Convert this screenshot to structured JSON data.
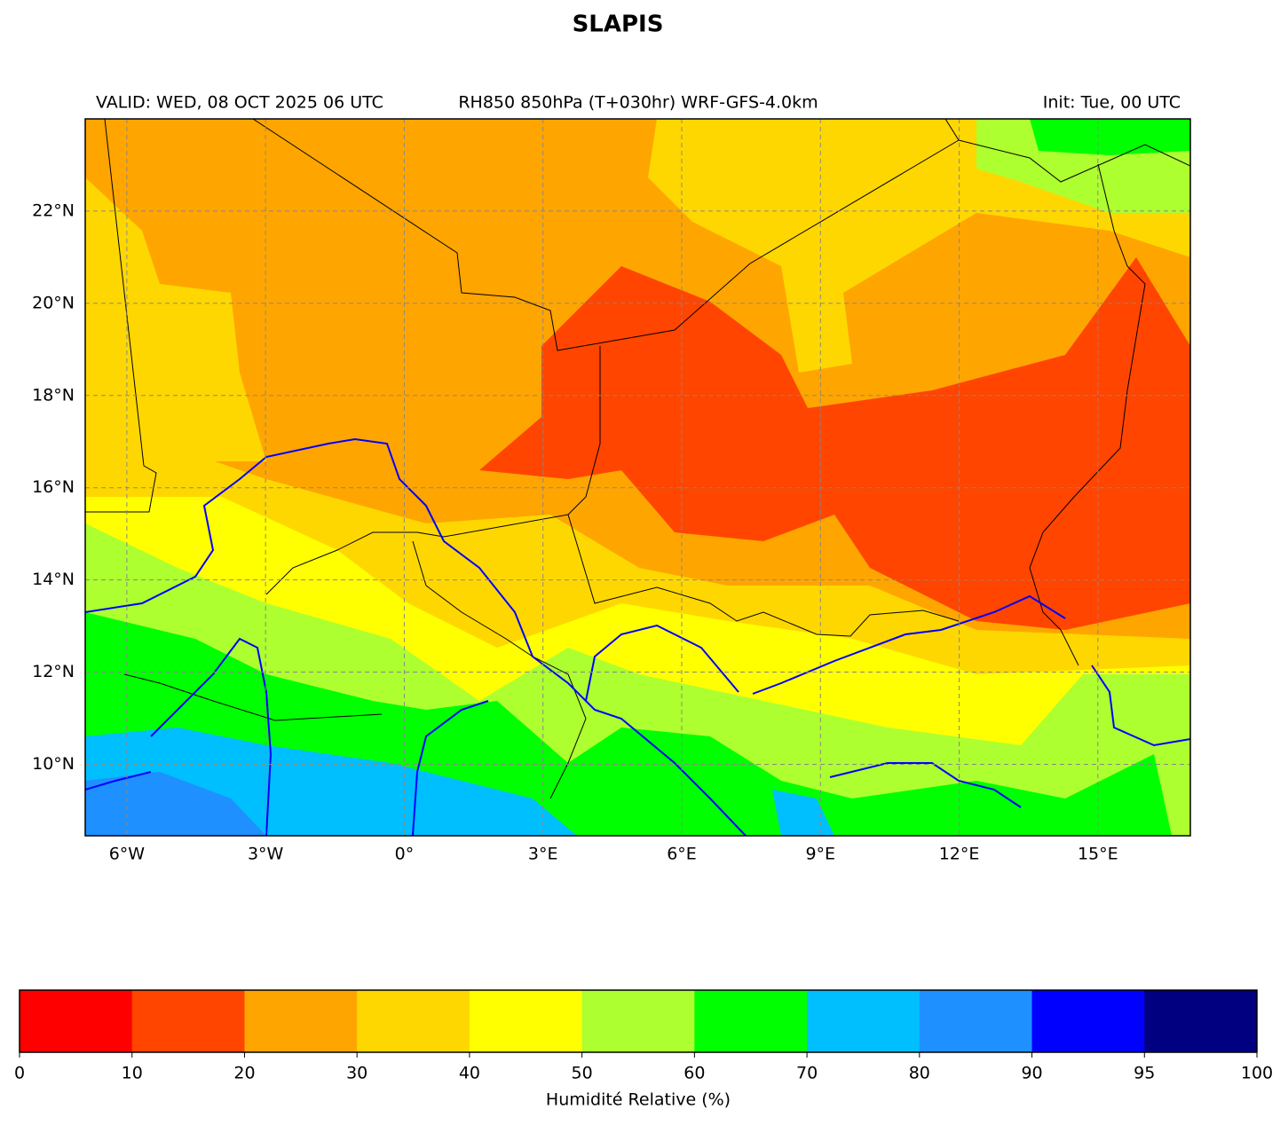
{
  "title": "SLAPIS",
  "header": {
    "left": "VALID: WED, 08 OCT 2025 06 UTC",
    "center": "RH850 850hPa (T+030hr) WRF-GFS-4.0km",
    "right": "Init: Tue, 00 UTC"
  },
  "map": {
    "xlim": [
      -6.9,
      17
    ],
    "ylim": [
      8.45,
      24
    ],
    "grid": true,
    "xticks": [
      {
        "value": -6,
        "label": "6°W"
      },
      {
        "value": -3,
        "label": "3°W"
      },
      {
        "value": 0,
        "label": "0°"
      },
      {
        "value": 3,
        "label": "3°E"
      },
      {
        "value": 6,
        "label": "6°E"
      },
      {
        "value": 9,
        "label": "9°E"
      },
      {
        "value": 12,
        "label": "12°E"
      },
      {
        "value": 15,
        "label": "15°E"
      }
    ],
    "yticks": [
      {
        "value": 10,
        "label": "10°N"
      },
      {
        "value": 12,
        "label": "12°N"
      },
      {
        "value": 14,
        "label": "14°N"
      },
      {
        "value": 16,
        "label": "16°N"
      },
      {
        "value": 18,
        "label": "18°N"
      },
      {
        "value": 20,
        "label": "20°N"
      },
      {
        "value": 22,
        "label": "22°N"
      }
    ]
  },
  "colorbar": {
    "label": "Humidité Relative (%)",
    "boundaries": [
      0,
      10,
      20,
      30,
      40,
      50,
      60,
      70,
      80,
      90,
      95,
      100
    ],
    "colors": [
      "#ff0000",
      "#ff4500",
      "#ffa500",
      "#ffd700",
      "#ffff00",
      "#adff2f",
      "#00ff00",
      "#00bfff",
      "#1e90ff",
      "#0000ff",
      "#000080"
    ]
  }
}
